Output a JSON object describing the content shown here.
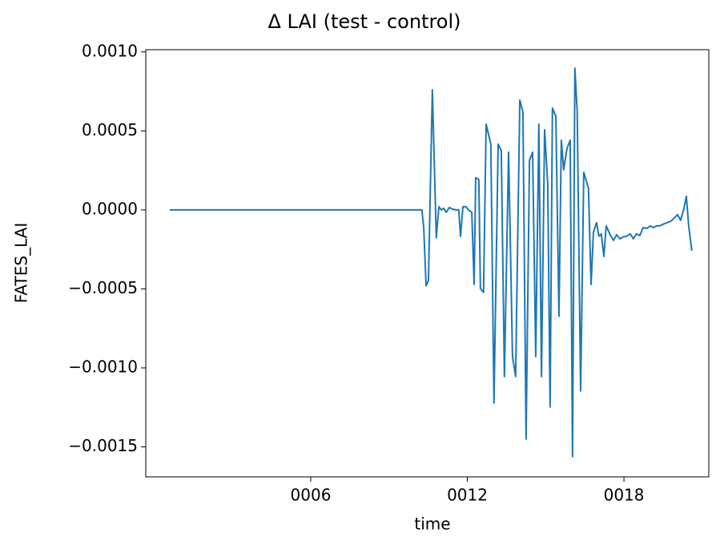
{
  "chart_data": {
    "type": "line",
    "title": "Δ LAI (test - control)",
    "xlabel": "time",
    "ylabel": "FATES_LAI",
    "xlim": [
      -0.32,
      21.25
    ],
    "ylim": [
      -0.00169,
      0.001014
    ],
    "xticks": [
      {
        "value": 6,
        "label": "0006"
      },
      {
        "value": 12,
        "label": "0012"
      },
      {
        "value": 18,
        "label": "0018"
      }
    ],
    "yticks": [
      {
        "value": 0.001,
        "label": "0.0010"
      },
      {
        "value": 0.0005,
        "label": "0.0005"
      },
      {
        "value": 0,
        "label": "0.0000"
      },
      {
        "value": -0.0005,
        "label": "−0.0005"
      },
      {
        "value": -0.001,
        "label": "−0.0010"
      },
      {
        "value": -0.0015,
        "label": "−0.0015"
      }
    ],
    "color": "#1f77b4",
    "x": [
      0.6,
      10.26,
      10.33,
      10.42,
      10.51,
      10.66,
      10.81,
      10.91,
      11.0,
      11.09,
      11.19,
      11.31,
      11.43,
      11.55,
      11.67,
      11.74,
      11.83,
      11.95,
      12.04,
      12.17,
      12.26,
      12.32,
      12.44,
      12.5,
      12.62,
      12.72,
      12.9,
      13.02,
      13.18,
      13.3,
      13.42,
      13.58,
      13.73,
      13.85,
      14.01,
      14.13,
      14.25,
      14.38,
      14.5,
      14.62,
      14.74,
      14.84,
      14.96,
      15.08,
      15.17,
      15.26,
      15.39,
      15.51,
      15.6,
      15.69,
      15.82,
      15.94,
      16.03,
      16.12,
      16.21,
      16.34,
      16.46,
      16.64,
      16.74,
      16.83,
      16.95,
      17.04,
      17.13,
      17.23,
      17.32,
      17.47,
      17.6,
      17.72,
      17.84,
      17.96,
      18.09,
      18.24,
      18.36,
      18.48,
      18.61,
      18.73,
      18.88,
      19.01,
      19.13,
      19.25,
      19.37,
      19.5,
      19.65,
      19.8,
      19.93,
      20.05,
      20.17,
      20.3,
      20.39,
      20.48,
      20.6
    ],
    "values": [
      0,
      0,
      -0.000117,
      -0.00048,
      -0.000446,
      0.00076,
      -0.000177,
      2e-05,
      0,
      1e-05,
      -1.5e-05,
      1.5e-05,
      5e-06,
      0,
      0,
      -0.000167,
      2e-05,
      2e-05,
      0,
      -1.5e-05,
      -0.000472,
      0.000203,
      0.000193,
      -0.000497,
      -0.000522,
      0.000542,
      0.000416,
      -0.001222,
      0.000416,
      0.000375,
      -0.001055,
      0.000365,
      -0.000928,
      -0.001055,
      0.000695,
      0.000619,
      -0.00145,
      0.000314,
      0.000365,
      -0.000928,
      0.000542,
      -0.001055,
      0.000507,
      0.000162,
      -0.001247,
      0.000644,
      0.000593,
      -0.000674,
      0.000441,
      0.000254,
      0.00039,
      0.000441,
      -0.001562,
      0.000897,
      0.000619,
      -0.001146,
      0.000238,
      0.000137,
      -0.000472,
      -0.000142,
      -8.1e-05,
      -0.000167,
      -0.000152,
      -0.000294,
      -0.000101,
      -0.000157,
      -0.000193,
      -0.000157,
      -0.000183,
      -0.000172,
      -0.000167,
      -0.000152,
      -0.000183,
      -0.000152,
      -0.000162,
      -0.000112,
      -0.000117,
      -0.000101,
      -0.000112,
      -0.000101,
      -0.000101,
      -9.1e-05,
      -8.1e-05,
      -7.1e-05,
      -5.1e-05,
      -3e-05,
      -6.6e-05,
      1e-05,
      8.6e-05,
      -0.000101,
      -0.000259
    ]
  }
}
